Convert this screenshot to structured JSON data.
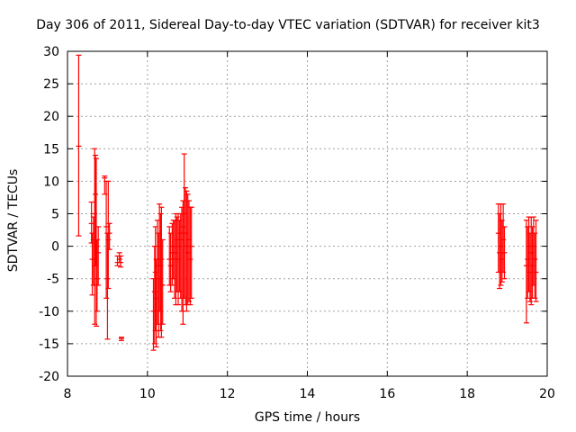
{
  "chart_data": {
    "type": "scatter",
    "title": "Day 306 of 2011, Sidereal Day-to-day VTEC variation (SDTVAR) for receiver kit3",
    "xlabel": "GPS time / hours",
    "ylabel": "SDTVAR / TECUs",
    "xlim": [
      8,
      20
    ],
    "ylim": [
      -20,
      30
    ],
    "xticks": [
      8,
      10,
      12,
      14,
      16,
      18,
      20
    ],
    "yticks": [
      -20,
      -15,
      -10,
      -5,
      0,
      5,
      10,
      15,
      20,
      25,
      30
    ],
    "grid": true,
    "error_bars": true,
    "series_color": "#ff0000",
    "points": [
      {
        "x": 8.28,
        "y": 15.4,
        "lo": 1.6,
        "hi": 29.4
      },
      {
        "x": 8.6,
        "y": 3.5,
        "lo": 0.5,
        "hi": 6.8
      },
      {
        "x": 8.62,
        "y": -2.0,
        "lo": -7.5,
        "hi": 2.0
      },
      {
        "x": 8.65,
        "y": 1.0,
        "lo": -6.0,
        "hi": 4.5
      },
      {
        "x": 8.68,
        "y": 5.0,
        "lo": -12.0,
        "hi": 15.0
      },
      {
        "x": 8.7,
        "y": 8.0,
        "lo": -3.0,
        "hi": 14.0
      },
      {
        "x": 8.72,
        "y": 0.0,
        "lo": -12.3,
        "hi": 13.5
      },
      {
        "x": 8.74,
        "y": -5.0,
        "lo": -10.0,
        "hi": 1.0
      },
      {
        "x": 8.77,
        "y": -1.0,
        "lo": -6.0,
        "hi": 3.0
      },
      {
        "x": 8.93,
        "y": 10.5,
        "lo": 8.0,
        "hi": 10.8
      },
      {
        "x": 8.97,
        "y": 3.0,
        "lo": -8.0,
        "hi": 10.0
      },
      {
        "x": 9.0,
        "y": -5.0,
        "lo": -14.3,
        "hi": 2.0
      },
      {
        "x": 9.02,
        "y": 1.0,
        "lo": -6.5,
        "hi": 10.0
      },
      {
        "x": 9.05,
        "y": 2.0,
        "lo": -0.5,
        "hi": 3.5
      },
      {
        "x": 9.25,
        "y": -2.5,
        "lo": -3.0,
        "hi": -1.5
      },
      {
        "x": 9.3,
        "y": -2.0,
        "lo": -2.5,
        "hi": -1.0
      },
      {
        "x": 9.33,
        "y": -2.5,
        "lo": -3.2,
        "hi": -1.5
      },
      {
        "x": 9.35,
        "y": -14.2,
        "lo": -14.5,
        "hi": -14.0
      },
      {
        "x": 10.15,
        "y": -10.0,
        "lo": -16.0,
        "hi": -5.0
      },
      {
        "x": 10.18,
        "y": -7.0,
        "lo": -15.0,
        "hi": 0.0
      },
      {
        "x": 10.2,
        "y": -4.0,
        "lo": -13.0,
        "hi": 3.0
      },
      {
        "x": 10.22,
        "y": -8.0,
        "lo": -15.5,
        "hi": -2.0
      },
      {
        "x": 10.25,
        "y": -3.0,
        "lo": -12.0,
        "hi": 4.0
      },
      {
        "x": 10.28,
        "y": -5.0,
        "lo": -14.0,
        "hi": 2.0
      },
      {
        "x": 10.3,
        "y": 0.0,
        "lo": -10.0,
        "hi": 6.5
      },
      {
        "x": 10.33,
        "y": -3.0,
        "lo": -13.0,
        "hi": 5.0
      },
      {
        "x": 10.35,
        "y": -2.0,
        "lo": -14.0,
        "hi": 6.0
      },
      {
        "x": 10.38,
        "y": -6.0,
        "lo": -12.0,
        "hi": 1.0
      },
      {
        "x": 10.55,
        "y": -2.0,
        "lo": -6.0,
        "hi": 3.0
      },
      {
        "x": 10.58,
        "y": -3.0,
        "lo": -7.0,
        "hi": 2.0
      },
      {
        "x": 10.62,
        "y": -1.0,
        "lo": -6.0,
        "hi": 3.5
      },
      {
        "x": 10.65,
        "y": 0.0,
        "lo": -5.0,
        "hi": 4.0
      },
      {
        "x": 10.68,
        "y": -2.0,
        "lo": -8.0,
        "hi": 4.0
      },
      {
        "x": 10.71,
        "y": -1.0,
        "lo": -9.0,
        "hi": 5.0
      },
      {
        "x": 10.74,
        "y": 1.0,
        "lo": -7.0,
        "hi": 4.5
      },
      {
        "x": 10.77,
        "y": -2.0,
        "lo": -9.0,
        "hi": 5.0
      },
      {
        "x": 10.8,
        "y": 0.0,
        "lo": -7.0,
        "hi": 4.0
      },
      {
        "x": 10.83,
        "y": 2.0,
        "lo": -8.0,
        "hi": 5.0
      },
      {
        "x": 10.86,
        "y": 1.0,
        "lo": -10.0,
        "hi": 6.0
      },
      {
        "x": 10.89,
        "y": 3.0,
        "lo": -12.0,
        "hi": 7.0
      },
      {
        "x": 10.92,
        "y": 5.0,
        "lo": -8.0,
        "hi": 14.2
      },
      {
        "x": 10.95,
        "y": 2.0,
        "lo": -9.0,
        "hi": 9.0
      },
      {
        "x": 10.98,
        "y": 0.0,
        "lo": -10.0,
        "hi": 8.5
      },
      {
        "x": 11.01,
        "y": -1.0,
        "lo": -9.0,
        "hi": 8.0
      },
      {
        "x": 11.04,
        "y": 1.0,
        "lo": -8.5,
        "hi": 7.0
      },
      {
        "x": 11.07,
        "y": -2.0,
        "lo": -9.0,
        "hi": 6.0
      },
      {
        "x": 11.1,
        "y": 0.0,
        "lo": -8.0,
        "hi": 6.0
      },
      {
        "x": 18.78,
        "y": 2.0,
        "lo": -4.0,
        "hi": 6.5
      },
      {
        "x": 18.81,
        "y": -1.0,
        "lo": -6.5,
        "hi": 5.0
      },
      {
        "x": 18.84,
        "y": 0.0,
        "lo": -6.0,
        "hi": 6.5
      },
      {
        "x": 18.87,
        "y": -2.0,
        "lo": -5.5,
        "hi": 4.0
      },
      {
        "x": 18.9,
        "y": 1.0,
        "lo": -4.0,
        "hi": 6.5
      },
      {
        "x": 18.93,
        "y": -1.0,
        "lo": -5.0,
        "hi": 3.0
      },
      {
        "x": 19.48,
        "y": -3.0,
        "lo": -11.8,
        "hi": 4.0
      },
      {
        "x": 19.51,
        "y": -2.0,
        "lo": -8.0,
        "hi": 3.0
      },
      {
        "x": 19.54,
        "y": 0.0,
        "lo": -7.0,
        "hi": 4.5
      },
      {
        "x": 19.57,
        "y": -4.0,
        "lo": -8.5,
        "hi": 2.0
      },
      {
        "x": 19.6,
        "y": -1.0,
        "lo": -9.0,
        "hi": 4.5
      },
      {
        "x": 19.63,
        "y": -3.0,
        "lo": -8.0,
        "hi": 3.0
      },
      {
        "x": 19.66,
        "y": 0.0,
        "lo": -6.0,
        "hi": 4.5
      },
      {
        "x": 19.69,
        "y": -2.0,
        "lo": -8.0,
        "hi": 2.0
      },
      {
        "x": 19.72,
        "y": -4.0,
        "lo": -8.5,
        "hi": 4.0
      }
    ]
  }
}
